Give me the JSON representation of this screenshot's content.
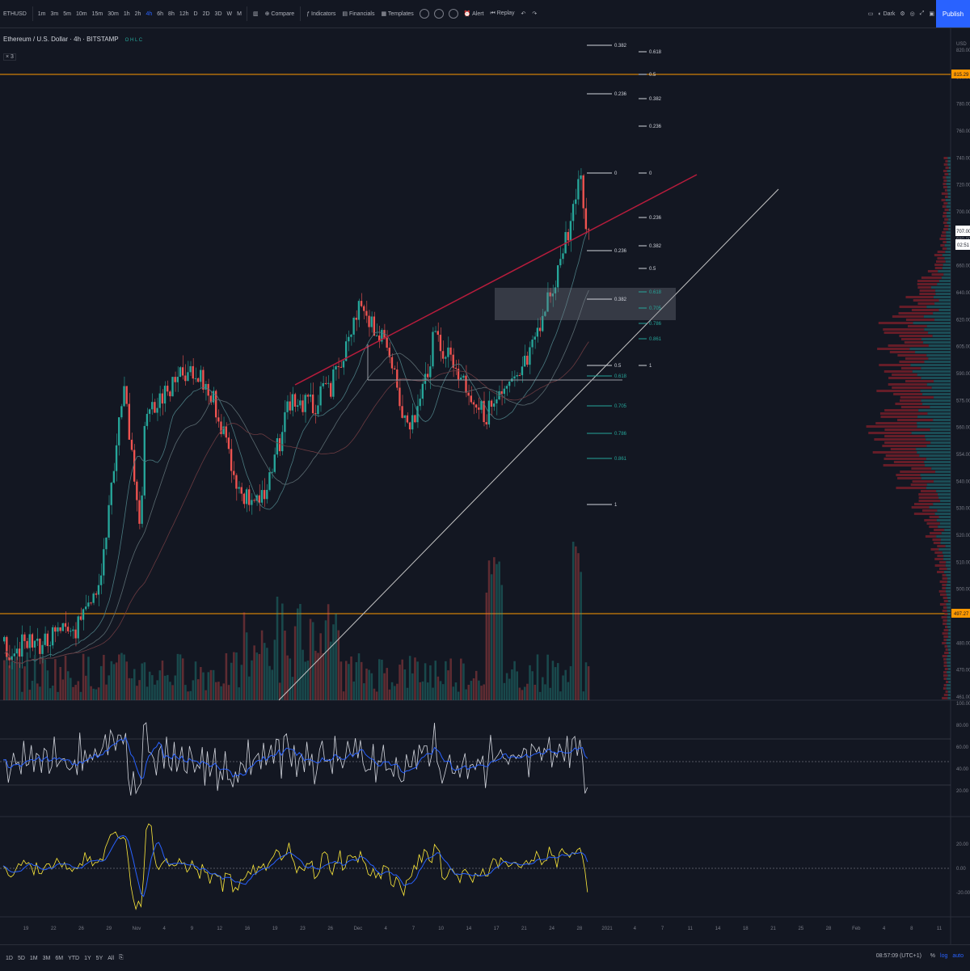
{
  "toolbar": {
    "symbol": "ETHUSD",
    "timeframes": [
      "1m",
      "3m",
      "5m",
      "10m",
      "15m",
      "30m",
      "1h",
      "2h",
      "4h",
      "6h",
      "8h",
      "12h",
      "D",
      "2D",
      "3D",
      "W",
      "M"
    ],
    "compare": "Compare",
    "indicators": "Indicators",
    "financials": "Financials",
    "templates": "Templates",
    "alert": "Alert",
    "replay": "Replay",
    "theme": "Dark",
    "publish": "Publish"
  },
  "legend": {
    "title": "Ethereum / U.S. Dollar",
    "interval": "4h",
    "exchange": "BITSTAMP",
    "ohlc": "O  H  L  C",
    "collapsed": "× 3"
  },
  "price_axis": {
    "ticks": [
      "USD",
      "820.00",
      "800.00",
      "780.00",
      "760.00",
      "740.00",
      "720.00",
      "700.00",
      "680.00",
      "660.00",
      "640.00",
      "620.00",
      "605.00",
      "590.00",
      "575.00",
      "560.00",
      "554.00",
      "540.00",
      "530.00",
      "520.00",
      "510.00",
      "500.00",
      "490.00",
      "480.00",
      "470.00",
      "461.00"
    ],
    "level_top": "815.29",
    "level_bottom": "497.27",
    "last_price": "707.00",
    "last_change": "02:51"
  },
  "rsi_axis": [
    "100.00",
    "80.00",
    "60.00",
    "40.00",
    "20.00"
  ],
  "osc_axis": [
    "20.00",
    "0.00",
    "-20.00"
  ],
  "fib_left": [
    "0.382",
    "0.236",
    "0",
    "0.236",
    "0.382",
    "0.5",
    "0.618",
    "0.705",
    "0.786",
    "0.861",
    "1"
  ],
  "fib_right": [
    "0.618",
    "0.5",
    "0.382",
    "0.236",
    "0",
    "0.236",
    "0.382",
    "0.5",
    "0.618",
    "0.705",
    "0.786",
    "0.861",
    "1"
  ],
  "time_axis": [
    "19",
    "22",
    "26",
    "29",
    "Nov",
    "4",
    "9",
    "12",
    "16",
    "19",
    "23",
    "26",
    "Dec",
    "4",
    "7",
    "10",
    "14",
    "17",
    "21",
    "24",
    "28",
    "2021",
    "4",
    "7",
    "11",
    "14",
    "18",
    "21",
    "25",
    "28",
    "Feb",
    "4",
    "8",
    "11"
  ],
  "bottombar": {
    "ranges": [
      "1D",
      "5D",
      "1M",
      "3M",
      "6M",
      "YTD",
      "1Y",
      "5Y",
      "All"
    ],
    "clock": "08:57:09 (UTC+1)",
    "pct": "%",
    "log": "log",
    "auto": "auto"
  },
  "colors": {
    "background": "#131722",
    "up": "#26a69a",
    "down": "#ef5350",
    "level": "#ff9800",
    "trend": "#c8c8c8",
    "resistance": "#b71c3c",
    "rsi": "#2962ff",
    "osc": "#ffeb3b"
  }
}
